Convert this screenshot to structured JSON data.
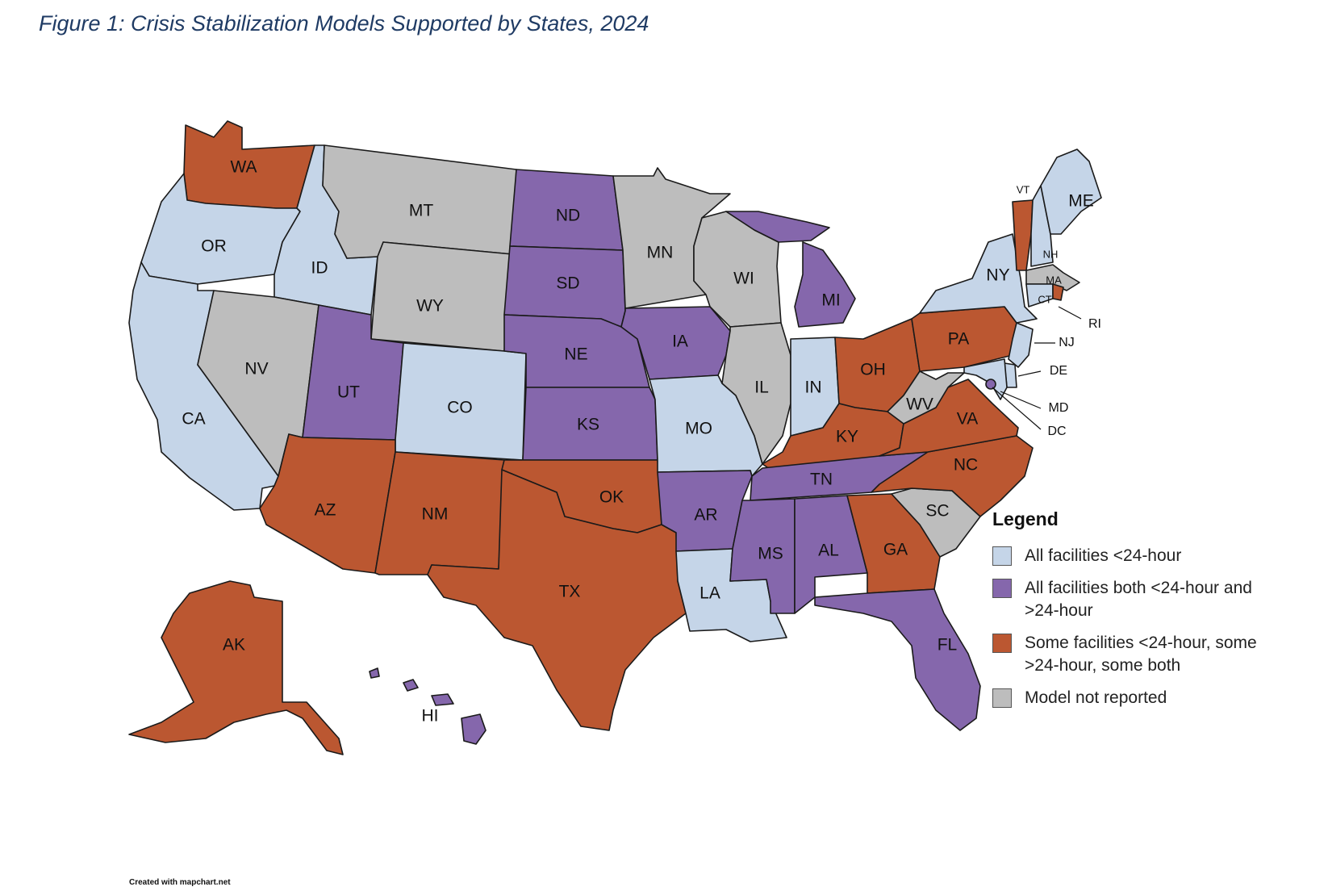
{
  "title": "Figure 1: Crisis Stabilization Models Supported by States, 2024",
  "credit": "Created with mapchart.net",
  "colors": {
    "lt24": "#c5d5e8",
    "both": "#8567ac",
    "some": "#bb5731",
    "none": "#bdbdbd"
  },
  "legend": {
    "title": "Legend",
    "items": [
      {
        "key": "lt24",
        "label": "All facilities <24-hour"
      },
      {
        "key": "both",
        "label": "All facilities both <24-hour and >24-hour"
      },
      {
        "key": "some",
        "label": "Some facilities <24-hour, some >24-hour, some both"
      },
      {
        "key": "none",
        "label": "Model not reported"
      }
    ]
  },
  "states": {
    "WA": "some",
    "OR": "lt24",
    "CA": "lt24",
    "ID": "lt24",
    "NV": "none",
    "MT": "none",
    "WY": "none",
    "UT": "both",
    "AZ": "some",
    "CO": "lt24",
    "NM": "some",
    "ND": "both",
    "SD": "both",
    "NE": "both",
    "KS": "both",
    "OK": "some",
    "TX": "some",
    "MN": "none",
    "IA": "both",
    "MO": "lt24",
    "AR": "both",
    "LA": "lt24",
    "WI": "none",
    "IL": "none",
    "MI": "both",
    "IN": "lt24",
    "OH": "some",
    "KY": "some",
    "TN": "both",
    "MS": "both",
    "AL": "both",
    "GA": "some",
    "FL": "both",
    "SC": "none",
    "NC": "some",
    "VA": "some",
    "WV": "none",
    "PA": "some",
    "NY": "lt24",
    "VT": "some",
    "NH": "lt24",
    "ME": "lt24",
    "MA": "none",
    "RI": "some",
    "CT": "lt24",
    "NJ": "lt24",
    "DE": "lt24",
    "MD": "lt24",
    "DC": "both",
    "AK": "some",
    "HI": "both"
  },
  "labels": {
    "WA": "WA",
    "OR": "OR",
    "CA": "CA",
    "ID": "ID",
    "NV": "NV",
    "MT": "MT",
    "WY": "WY",
    "UT": "UT",
    "AZ": "AZ",
    "CO": "CO",
    "NM": "NM",
    "ND": "ND",
    "SD": "SD",
    "NE": "NE",
    "KS": "KS",
    "OK": "OK",
    "TX": "TX",
    "MN": "MN",
    "IA": "IA",
    "MO": "MO",
    "AR": "AR",
    "LA": "LA",
    "WI": "WI",
    "IL": "IL",
    "MI": "MI",
    "IN": "IN",
    "OH": "OH",
    "KY": "KY",
    "TN": "TN",
    "MS": "MS",
    "AL": "AL",
    "GA": "GA",
    "FL": "FL",
    "SC": "SC",
    "NC": "NC",
    "VA": "VA",
    "WV": "WV",
    "PA": "PA",
    "NY": "NY",
    "VT": "VT",
    "NH": "NH",
    "ME": "ME",
    "MA": "MA",
    "RI": "RI",
    "CT": "CT",
    "NJ": "NJ",
    "DE": "DE",
    "MD": "MD",
    "DC": "DC",
    "AK": "AK",
    "HI": "HI"
  }
}
